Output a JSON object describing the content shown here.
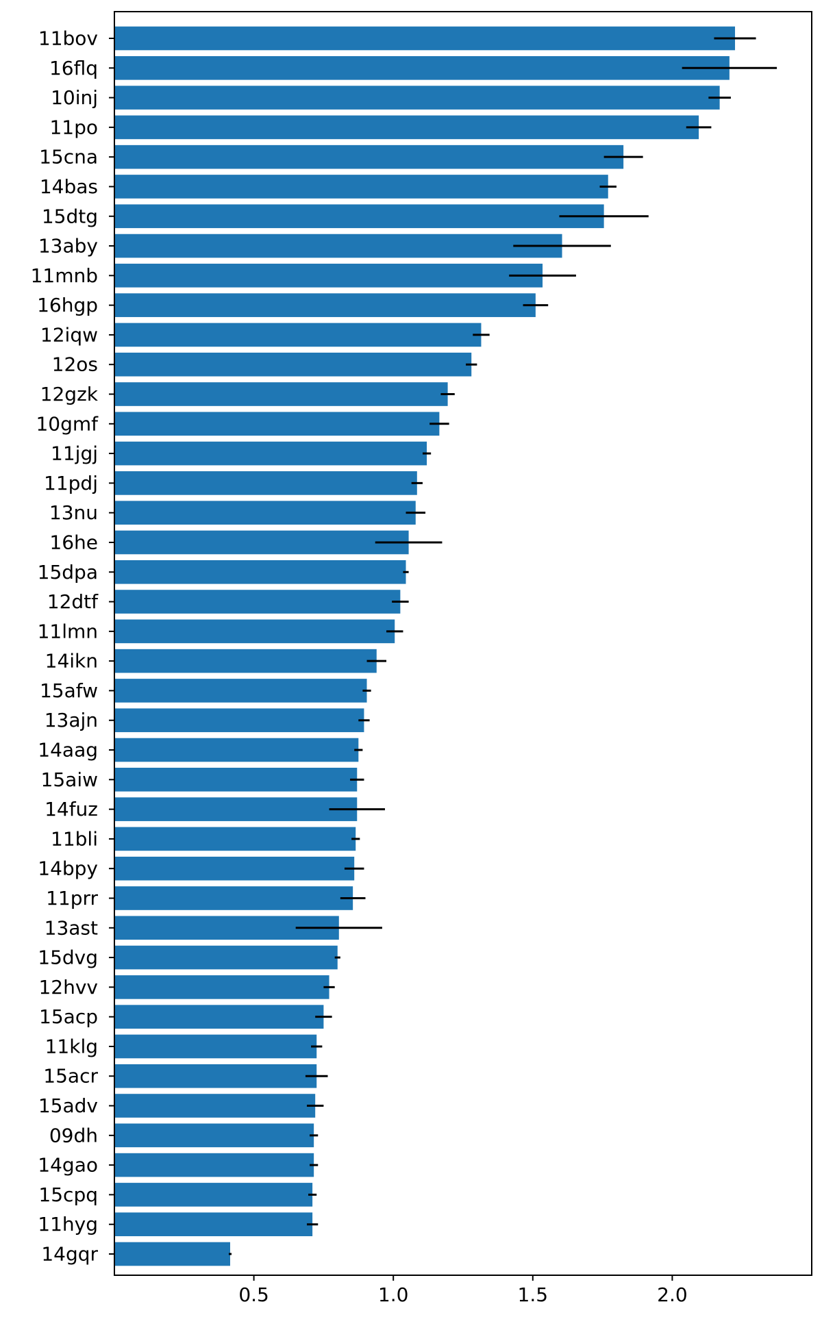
{
  "chart_data": {
    "type": "bar",
    "orientation": "horizontal",
    "title": "",
    "xlabel": "",
    "ylabel": "",
    "xlim": [
      0,
      2.5
    ],
    "x_ticks": [
      0.5,
      1.0,
      1.5,
      2.0
    ],
    "x_tick_labels": [
      "0.5",
      "1.0",
      "1.5",
      "2.0"
    ],
    "grid": false,
    "bar_color": "#1f77b4",
    "error_color": "#000000",
    "categories": [
      "11bov",
      "16flq",
      "10inj",
      "11po",
      "15cna",
      "14bas",
      "15dtg",
      "13aby",
      "11mnb",
      "16hgp",
      "12iqw",
      "12os",
      "12gzk",
      "10gmf",
      "11jgj",
      "11pdj",
      "13nu",
      "16he",
      "15dpa",
      "12dtf",
      "11lmn",
      "14ikn",
      "15afw",
      "13ajn",
      "14aag",
      "15aiw",
      "14fuz",
      "11bli",
      "14bpy",
      "11prr",
      "13ast",
      "15dvg",
      "12hvv",
      "15acp",
      "11klg",
      "15acr",
      "15adv",
      "09dh",
      "14gao",
      "15cpq",
      "11hyg",
      "14gqr"
    ],
    "values": [
      2.225,
      2.205,
      2.17,
      2.095,
      1.825,
      1.77,
      1.755,
      1.605,
      1.535,
      1.51,
      1.315,
      1.28,
      1.195,
      1.165,
      1.12,
      1.085,
      1.08,
      1.055,
      1.045,
      1.025,
      1.005,
      0.94,
      0.905,
      0.895,
      0.875,
      0.87,
      0.87,
      0.865,
      0.86,
      0.855,
      0.805,
      0.8,
      0.77,
      0.75,
      0.725,
      0.725,
      0.72,
      0.715,
      0.715,
      0.71,
      0.71,
      0.415
    ],
    "errors": [
      0.075,
      0.17,
      0.04,
      0.045,
      0.07,
      0.03,
      0.16,
      0.175,
      0.12,
      0.045,
      0.03,
      0.02,
      0.025,
      0.035,
      0.015,
      0.02,
      0.035,
      0.12,
      0.01,
      0.03,
      0.03,
      0.035,
      0.015,
      0.02,
      0.015,
      0.025,
      0.1,
      0.015,
      0.035,
      0.045,
      0.155,
      0.01,
      0.02,
      0.03,
      0.02,
      0.04,
      0.03,
      0.015,
      0.015,
      0.015,
      0.02,
      0.005
    ]
  }
}
